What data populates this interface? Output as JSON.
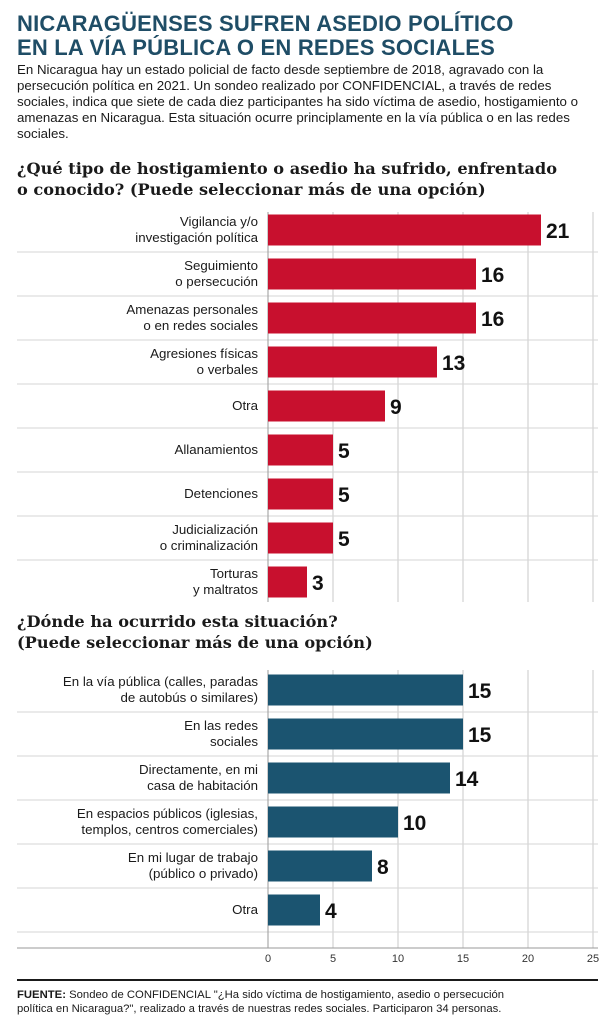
{
  "title": {
    "line1": "NICARAGÜENSES SUFREN ASEDIO POLÍTICO",
    "line2": "EN LA VÍA PÚBLICA O EN REDES SOCIALES"
  },
  "intro": "En Nicaragua hay un estado policial de facto desde septiembre de 2018, agravado con la persecución política en 2021. Un sondeo realizado por CONFIDENCIAL, a través de redes sociales, indica que siete de cada diez participantes ha sido víctima de asedio, hostigamiento o amenazas en Nicaragua. Esta situación ocurre principlamente en la vía pública o en las redes sociales.",
  "question1": {
    "line1": "¿Qué tipo de hostigamiento o asedio ha sufrido, enfrentado",
    "line2": "o conocido? (Puede seleccionar más de una opción)"
  },
  "question2": {
    "line1": "¿Dónde ha ocurrido esta situación?",
    "line2": "(Puede seleccionar más de una opción)"
  },
  "source": {
    "label": "FUENTE:",
    "text": " Sondeo de CONFIDENCIAL \"¿Ha sido víctima de hostigamiento, asedio o persecución política en Nicaragua?\", realizado a través de nuestras redes sociales. Participaron 34 personas."
  },
  "colors": {
    "series1": "#c8102e",
    "series2": "#1b5470",
    "grid": "#c8c8c8",
    "title": "#1f4d66"
  },
  "chart_data": {
    "type": "bar",
    "orientation": "horizontal",
    "xlim": [
      0,
      25
    ],
    "x_ticks": [
      0,
      5,
      10,
      15,
      20,
      25
    ],
    "grid": true,
    "panels": [
      {
        "categories": [
          [
            "Vigilancia y/o",
            "investigación política"
          ],
          [
            "Seguimiento",
            "o persecución"
          ],
          [
            "Amenazas personales",
            "o en redes sociales"
          ],
          [
            "Agresiones físicas",
            "o verbales"
          ],
          [
            "Otra"
          ],
          [
            "Allanamientos"
          ],
          [
            "Detenciones"
          ],
          [
            "Judicialización",
            "o criminalización"
          ],
          [
            "Torturas",
            "y maltratos"
          ]
        ],
        "values": [
          21,
          16,
          16,
          13,
          9,
          5,
          5,
          5,
          3
        ],
        "color": "#c8102e"
      },
      {
        "categories": [
          [
            "En la vía pública (calles, paradas",
            "de autobús o similares)"
          ],
          [
            "En las redes",
            "sociales"
          ],
          [
            "Directamente, en mi",
            "casa de habitación"
          ],
          [
            "En espacios públicos (iglesias,",
            "templos, centros comerciales)"
          ],
          [
            "En mi lugar de trabajo",
            "(público o privado)"
          ],
          [
            "Otra"
          ]
        ],
        "values": [
          15,
          15,
          14,
          10,
          8,
          4
        ],
        "color": "#1b5470"
      }
    ]
  }
}
